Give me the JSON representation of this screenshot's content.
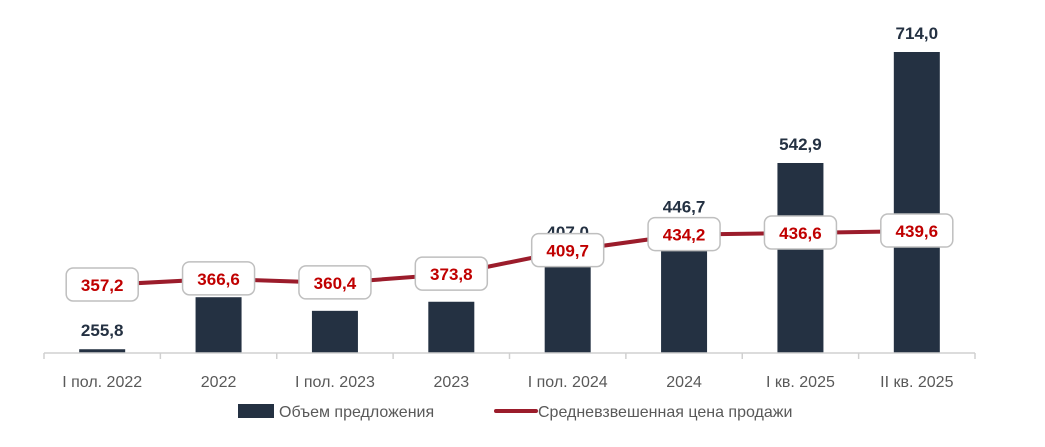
{
  "chart_data": {
    "type": "bar+line",
    "title": "",
    "categories": [
      "I пол. 2022",
      "2022",
      "I пол. 2023",
      "2023",
      "I пол. 2024",
      "2024",
      "I кв. 2025",
      "II кв. 2025"
    ],
    "series": [
      {
        "name": "Объем предложения",
        "type": "bar",
        "color": "#243142",
        "values": [
          255.8,
          336,
          315,
          329,
          407.0,
          446.7,
          542.9,
          714.0
        ],
        "labels": [
          "255,8",
          null,
          null,
          null,
          "407,0",
          "446,7",
          "542,9",
          "714,0"
        ],
        "ylim": [
          250,
          720
        ]
      },
      {
        "name": "Средневзвешенная цена продажи",
        "type": "line",
        "color": "#9b1c2b",
        "values": [
          357.2,
          366.6,
          360.4,
          373.8,
          409.7,
          434.2,
          436.6,
          439.6
        ],
        "labels": [
          "357,2",
          "366,6",
          "360,4",
          "373,8",
          "409,7",
          "434,2",
          "436,6",
          "439,6"
        ]
      }
    ],
    "legend_position": "bottom",
    "grid": false
  }
}
